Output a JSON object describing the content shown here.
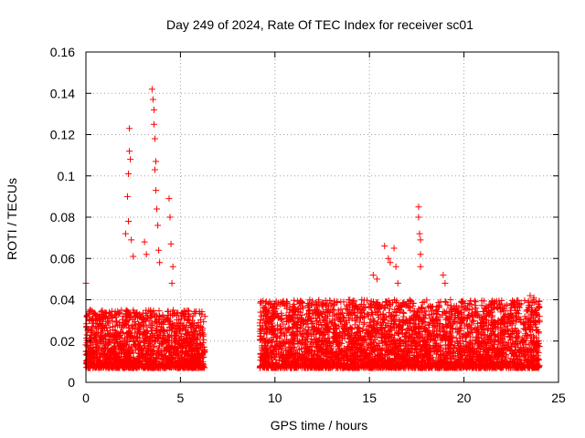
{
  "chart_data": {
    "type": "scatter",
    "title": "Day 249 of 2024, Rate Of TEC Index for receiver sc01",
    "xlabel": "GPS time / hours",
    "ylabel": "ROTI / TECUs",
    "xlim": [
      0,
      25
    ],
    "ylim": [
      0,
      0.16
    ],
    "xticks": [
      0,
      5,
      10,
      15,
      20,
      25
    ],
    "yticks": [
      0,
      0.02,
      0.04,
      0.06,
      0.08,
      0.1,
      0.12,
      0.14,
      0.16
    ],
    "xtick_labels": [
      "0",
      "5",
      "10",
      "15",
      "20",
      "25"
    ],
    "ytick_labels": [
      "0",
      "0.02",
      "0.04",
      "0.06",
      "0.08",
      "0.1",
      "0.12",
      "0.14",
      "0.16"
    ],
    "grid": true,
    "marker": "+",
    "color": "#ff0000",
    "data_gap_hours": [
      6.3,
      9.2
    ],
    "series": [
      {
        "name": "ROTI",
        "points": [
          [
            0.0,
            0.048
          ],
          [
            2.1,
            0.072
          ],
          [
            2.2,
            0.09
          ],
          [
            2.25,
            0.101
          ],
          [
            2.3,
            0.123
          ],
          [
            2.3,
            0.112
          ],
          [
            2.35,
            0.108
          ],
          [
            2.25,
            0.078
          ],
          [
            2.4,
            0.069
          ],
          [
            2.5,
            0.061
          ],
          [
            3.1,
            0.068
          ],
          [
            3.2,
            0.062
          ],
          [
            3.5,
            0.142
          ],
          [
            3.55,
            0.137
          ],
          [
            3.6,
            0.132
          ],
          [
            3.6,
            0.125
          ],
          [
            3.65,
            0.118
          ],
          [
            3.7,
            0.107
          ],
          [
            3.65,
            0.103
          ],
          [
            3.7,
            0.093
          ],
          [
            3.75,
            0.084
          ],
          [
            3.8,
            0.076
          ],
          [
            3.85,
            0.064
          ],
          [
            3.9,
            0.058
          ],
          [
            4.4,
            0.089
          ],
          [
            4.45,
            0.08
          ],
          [
            4.5,
            0.067
          ],
          [
            4.6,
            0.056
          ],
          [
            4.55,
            0.048
          ],
          [
            15.2,
            0.052
          ],
          [
            15.4,
            0.05
          ],
          [
            15.8,
            0.066
          ],
          [
            16.0,
            0.06
          ],
          [
            16.1,
            0.058
          ],
          [
            16.3,
            0.065
          ],
          [
            16.4,
            0.056
          ],
          [
            16.5,
            0.048
          ],
          [
            17.6,
            0.085
          ],
          [
            17.6,
            0.08
          ],
          [
            17.65,
            0.072
          ],
          [
            17.7,
            0.069
          ],
          [
            17.7,
            0.062
          ],
          [
            17.7,
            0.056
          ],
          [
            18.9,
            0.052
          ],
          [
            19.0,
            0.048
          ],
          [
            23.5,
            0.042
          ],
          [
            23.7,
            0.041
          ],
          [
            23.8,
            0.039
          ]
        ],
        "dense_band": [
          {
            "x_range": [
              0.0,
              6.3
            ],
            "y_range": [
              0.003,
              0.035
            ]
          },
          {
            "x_range": [
              9.2,
              24.0
            ],
            "y_range": [
              0.003,
              0.04
            ]
          }
        ]
      }
    ]
  }
}
